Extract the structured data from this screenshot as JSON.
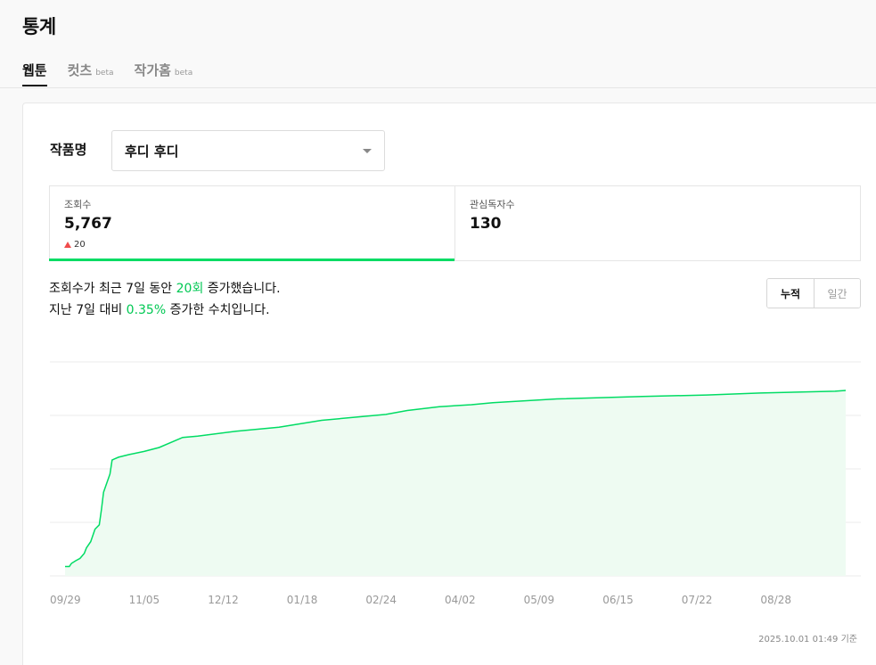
{
  "header": {
    "title": "통계"
  },
  "tabs": [
    {
      "label": "웹툰",
      "badge": "",
      "active": true
    },
    {
      "label": "컷츠",
      "badge": "beta",
      "active": false
    },
    {
      "label": "작가홈",
      "badge": "beta",
      "active": false
    }
  ],
  "work": {
    "label": "작품명",
    "selected": "후디 후디"
  },
  "stats": {
    "views": {
      "label": "조회수",
      "value": "5,767",
      "delta": "20"
    },
    "subscribers": {
      "label": "관심독자수",
      "value": "130"
    }
  },
  "summary": {
    "line1_prefix": "조회수가 최근 7일 동안 ",
    "line1_highlight": "20회",
    "line1_suffix": " 증가했습니다.",
    "line2_prefix": "지난 7일 대비 ",
    "line2_highlight": "0.35%",
    "line2_suffix": " 증가한 수치입니다."
  },
  "toggle": {
    "cumulative": "누적",
    "daily": "일간"
  },
  "colors": {
    "accent": "#00dc64",
    "accent_text": "#00c853",
    "up": "#f04c4c"
  },
  "chart_data": {
    "type": "area",
    "title": "",
    "xlabel": "",
    "ylabel": "",
    "grid": true,
    "tick_labels": [
      "09/29",
      "11/05",
      "12/12",
      "01/18",
      "02/24",
      "04/02",
      "05/09",
      "06/15",
      "07/22",
      "08/28"
    ],
    "y_ticks_shown": false,
    "x": [
      0,
      2,
      3,
      5,
      7,
      9,
      10,
      12,
      14,
      16,
      17,
      18,
      21,
      22,
      25,
      30,
      37,
      44,
      55,
      62,
      80,
      100,
      120,
      130,
      150,
      160,
      175,
      190,
      200,
      230,
      270,
      300,
      325,
      360,
      365
    ],
    "values": [
      1240,
      1240,
      1320,
      1390,
      1450,
      1580,
      1720,
      1880,
      2200,
      2310,
      2700,
      3150,
      3620,
      3980,
      4050,
      4120,
      4200,
      4300,
      4560,
      4590,
      4720,
      4820,
      5000,
      5050,
      5150,
      5250,
      5350,
      5400,
      5450,
      5550,
      5610,
      5650,
      5700,
      5747,
      5767
    ],
    "ylim": [
      1000,
      6500
    ]
  },
  "timestamp": "2025.10.01 01:49 기준"
}
